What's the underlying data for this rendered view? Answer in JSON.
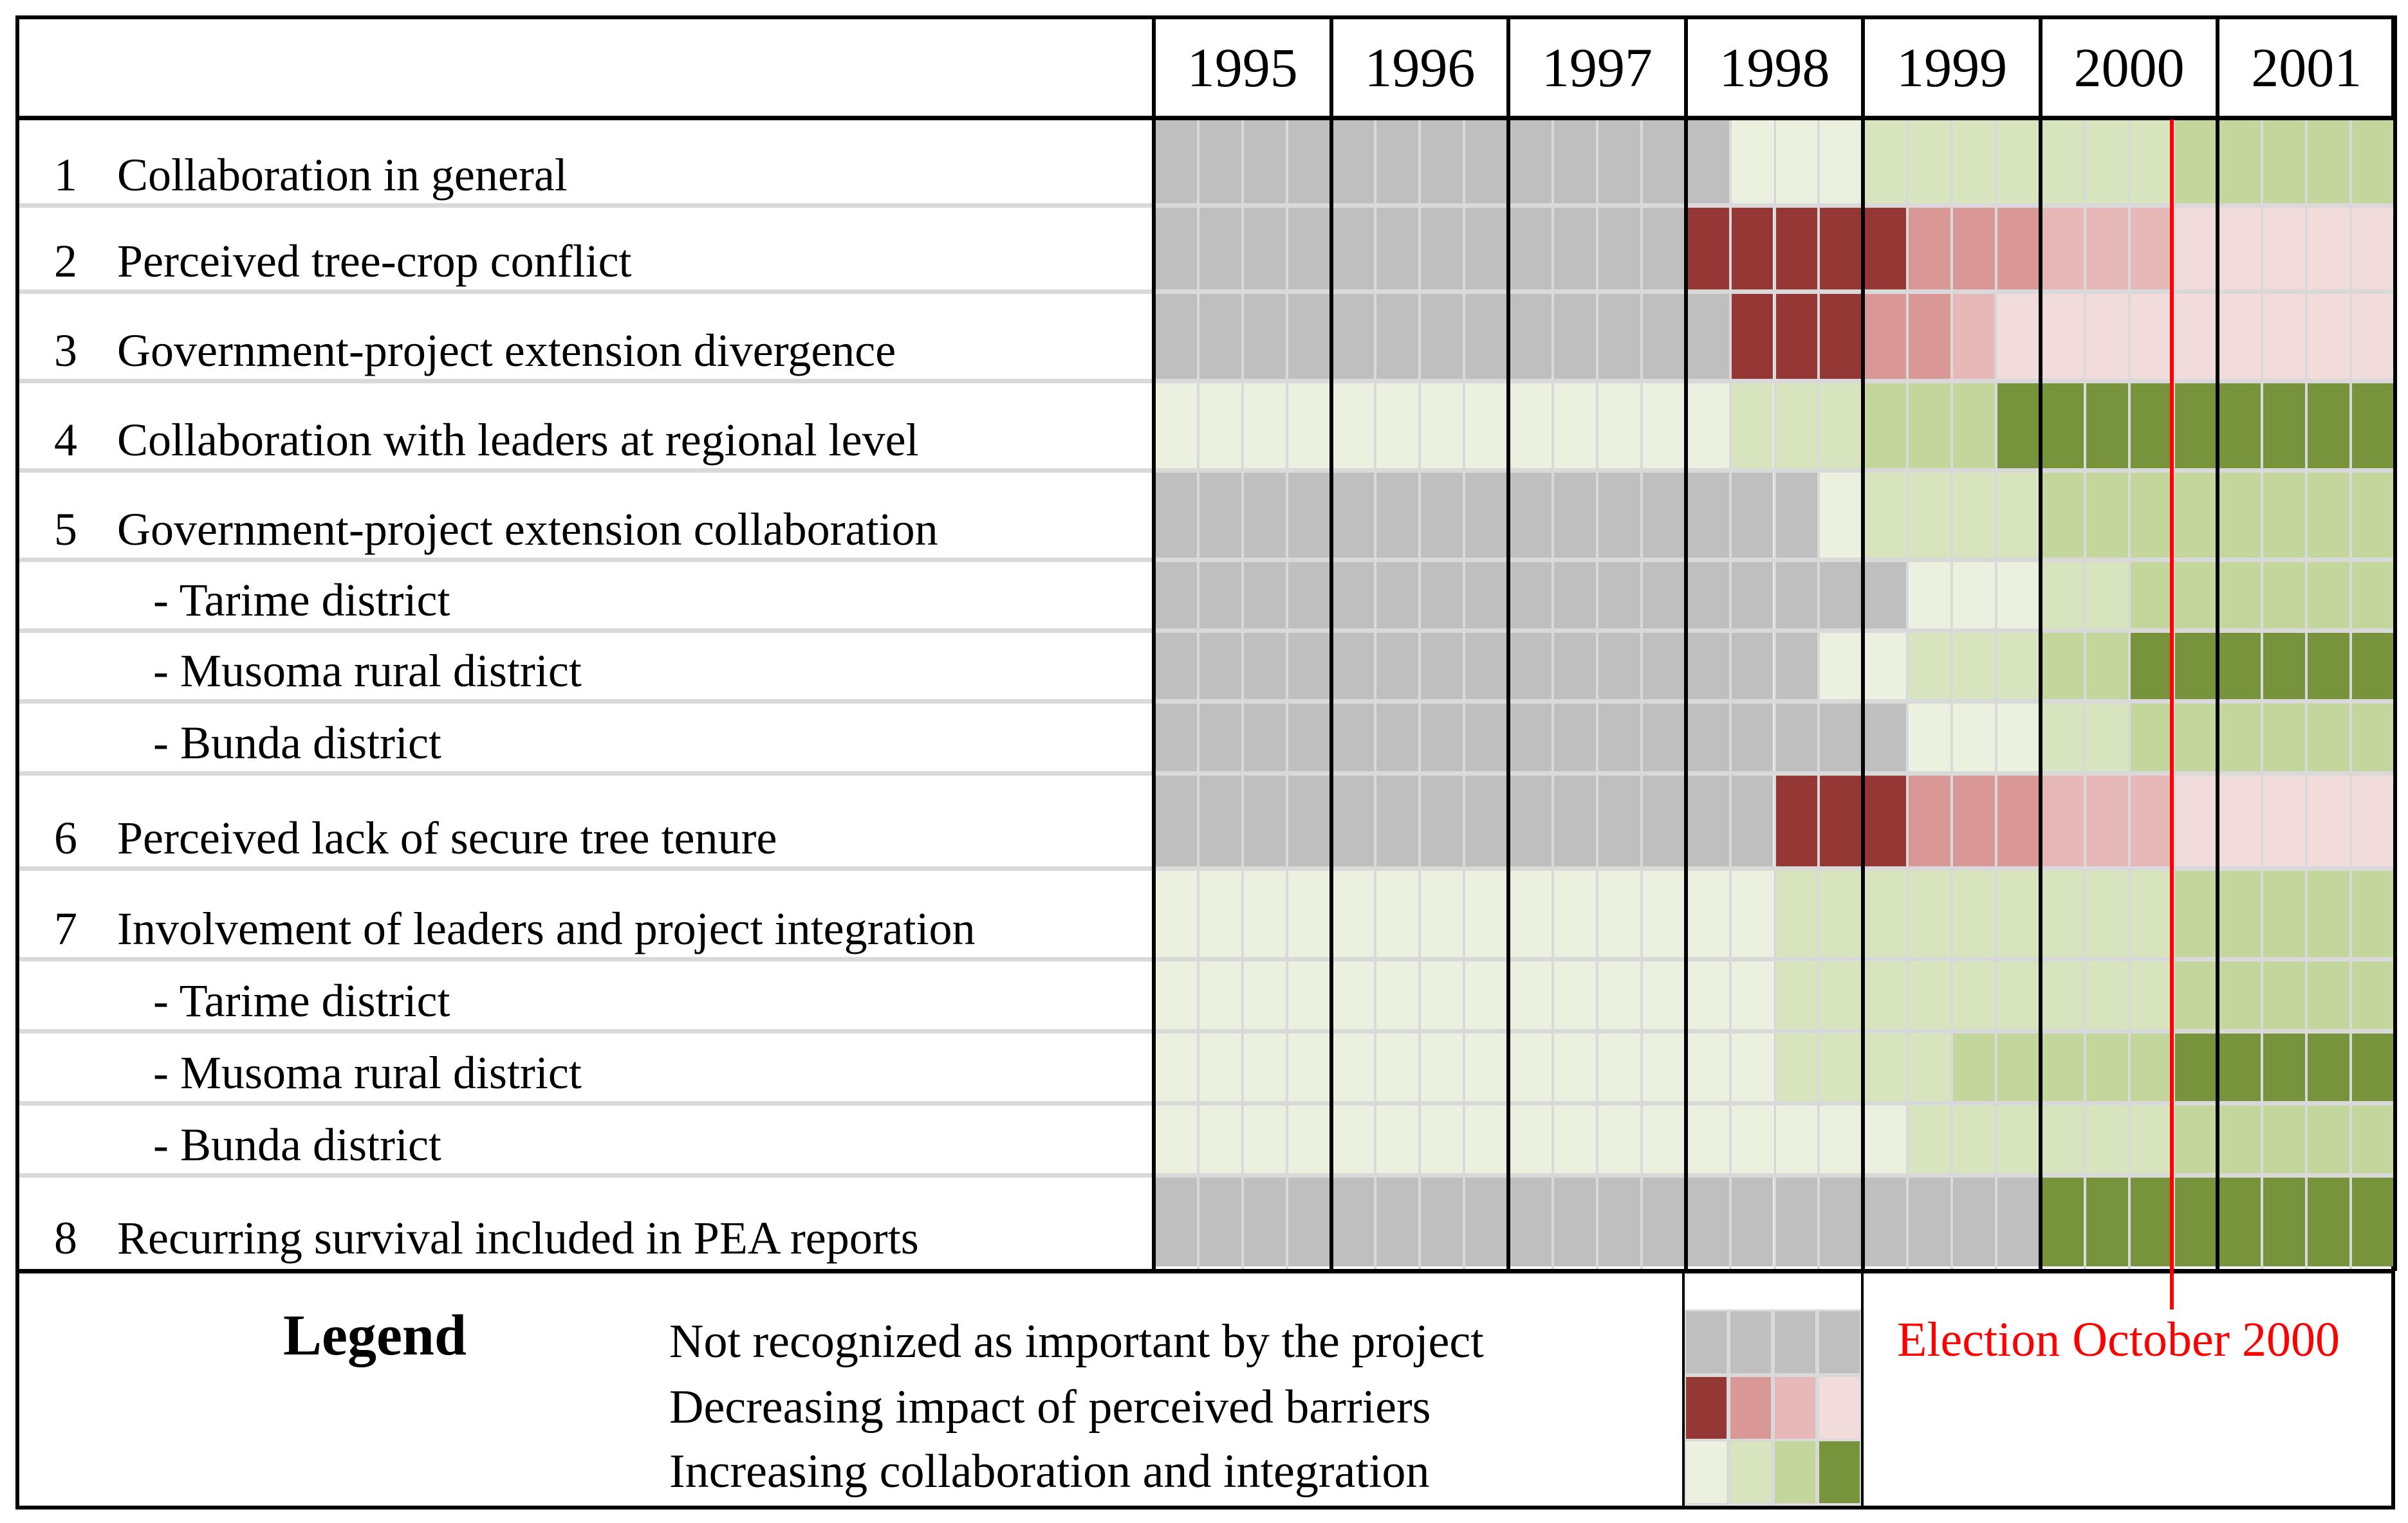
{
  "years": [
    "1995",
    "1996",
    "1997",
    "1998",
    "1999",
    "2000",
    "2001"
  ],
  "palette": {
    "G": "#BFBFBF",
    "D1": "#953735",
    "D2": "#D99795",
    "D3": "#E6B8B7",
    "D4": "#F2DCDB",
    "I1": "#EBF1DE",
    "I2": "#D7E4BD",
    "I3": "#C3D69B",
    "I4": "#77933C",
    "grid": "#D9D9D9",
    "election": "#FF0000"
  },
  "rows": [
    {
      "num": "1",
      "label": "Collaboration in general",
      "sub": false,
      "cells": [
        "G",
        "G",
        "G",
        "G",
        "G",
        "G",
        "G",
        "G",
        "G",
        "G",
        "G",
        "G",
        "G",
        "I1",
        "I1",
        "I1",
        "I2",
        "I2",
        "I2",
        "I2",
        "I2",
        "I2",
        "I2",
        "I3",
        "I3",
        "I3",
        "I3",
        "I3"
      ]
    },
    {
      "num": "2",
      "label": "Perceived tree-crop conflict",
      "sub": false,
      "cells": [
        "G",
        "G",
        "G",
        "G",
        "G",
        "G",
        "G",
        "G",
        "G",
        "G",
        "G",
        "G",
        "D1",
        "D1",
        "D1",
        "D1",
        "D1",
        "D2",
        "D2",
        "D2",
        "D3",
        "D3",
        "D3",
        "D4",
        "D4",
        "D4",
        "D4",
        "D4"
      ]
    },
    {
      "num": "3",
      "label": "Government-project extension divergence",
      "sub": false,
      "cells": [
        "G",
        "G",
        "G",
        "G",
        "G",
        "G",
        "G",
        "G",
        "G",
        "G",
        "G",
        "G",
        "G",
        "D1",
        "D1",
        "D1",
        "D2",
        "D2",
        "D3",
        "D4",
        "D4",
        "D4",
        "D4",
        "D4",
        "D4",
        "D4",
        "D4",
        "D4"
      ]
    },
    {
      "num": "4",
      "label": "Collaboration with leaders at regional level",
      "sub": false,
      "cells": [
        "I1",
        "I1",
        "I1",
        "I1",
        "I1",
        "I1",
        "I1",
        "I1",
        "I1",
        "I1",
        "I1",
        "I1",
        "I1",
        "I2",
        "I2",
        "I2",
        "I3",
        "I3",
        "I3",
        "I4",
        "I4",
        "I4",
        "I4",
        "I4",
        "I4",
        "I4",
        "I4",
        "I4"
      ]
    },
    {
      "num": "5",
      "label": "Government-project extension collaboration",
      "sub": false,
      "cells": [
        "G",
        "G",
        "G",
        "G",
        "G",
        "G",
        "G",
        "G",
        "G",
        "G",
        "G",
        "G",
        "G",
        "G",
        "G",
        "I1",
        "I2",
        "I2",
        "I2",
        "I2",
        "I3",
        "I3",
        "I3",
        "I3",
        "I3",
        "I3",
        "I3",
        "I3"
      ]
    },
    {
      "num": "",
      "label": "- Tarime district",
      "sub": true,
      "cells": [
        "G",
        "G",
        "G",
        "G",
        "G",
        "G",
        "G",
        "G",
        "G",
        "G",
        "G",
        "G",
        "G",
        "G",
        "G",
        "G",
        "G",
        "I1",
        "I1",
        "I1",
        "I2",
        "I2",
        "I3",
        "I3",
        "I3",
        "I3",
        "I3",
        "I3"
      ]
    },
    {
      "num": "",
      "label": "- Musoma rural district",
      "sub": true,
      "cells": [
        "G",
        "G",
        "G",
        "G",
        "G",
        "G",
        "G",
        "G",
        "G",
        "G",
        "G",
        "G",
        "G",
        "G",
        "G",
        "I1",
        "I1",
        "I2",
        "I2",
        "I2",
        "I3",
        "I3",
        "I4",
        "I4",
        "I4",
        "I4",
        "I4",
        "I4"
      ]
    },
    {
      "num": "",
      "label": "- Bunda district",
      "sub": true,
      "cells": [
        "G",
        "G",
        "G",
        "G",
        "G",
        "G",
        "G",
        "G",
        "G",
        "G",
        "G",
        "G",
        "G",
        "G",
        "G",
        "G",
        "G",
        "I1",
        "I1",
        "I1",
        "I2",
        "I2",
        "I3",
        "I3",
        "I3",
        "I3",
        "I3",
        "I3"
      ]
    },
    {
      "num": "6",
      "label": "Perceived  lack of secure tree tenure",
      "sub": false,
      "cells": [
        "G",
        "G",
        "G",
        "G",
        "G",
        "G",
        "G",
        "G",
        "G",
        "G",
        "G",
        "G",
        "G",
        "G",
        "D1",
        "D1",
        "D1",
        "D2",
        "D2",
        "D2",
        "D3",
        "D3",
        "D3",
        "D4",
        "D4",
        "D4",
        "D4",
        "D4"
      ]
    },
    {
      "num": "7",
      "label": "Involvement of leaders and project integration",
      "sub": false,
      "cells": [
        "I1",
        "I1",
        "I1",
        "I1",
        "I1",
        "I1",
        "I1",
        "I1",
        "I1",
        "I1",
        "I1",
        "I1",
        "I1",
        "I1",
        "I2",
        "I2",
        "I2",
        "I2",
        "I2",
        "I2",
        "I2",
        "I2",
        "I2",
        "I3",
        "I3",
        "I3",
        "I3",
        "I3"
      ]
    },
    {
      "num": "",
      "label": "- Tarime district",
      "sub": true,
      "cells": [
        "I1",
        "I1",
        "I1",
        "I1",
        "I1",
        "I1",
        "I1",
        "I1",
        "I1",
        "I1",
        "I1",
        "I1",
        "I1",
        "I1",
        "I2",
        "I2",
        "I2",
        "I2",
        "I2",
        "I2",
        "I2",
        "I2",
        "I2",
        "I3",
        "I3",
        "I3",
        "I3",
        "I3"
      ]
    },
    {
      "num": "",
      "label": "- Musoma rural district",
      "sub": true,
      "cells": [
        "I1",
        "I1",
        "I1",
        "I1",
        "I1",
        "I1",
        "I1",
        "I1",
        "I1",
        "I1",
        "I1",
        "I1",
        "I1",
        "I1",
        "I2",
        "I2",
        "I2",
        "I2",
        "I3",
        "I3",
        "I3",
        "I3",
        "I3",
        "I4",
        "I4",
        "I4",
        "I4",
        "I4"
      ]
    },
    {
      "num": "",
      "label": "- Bunda district",
      "sub": true,
      "cells": [
        "I1",
        "I1",
        "I1",
        "I1",
        "I1",
        "I1",
        "I1",
        "I1",
        "I1",
        "I1",
        "I1",
        "I1",
        "I1",
        "I1",
        "I1",
        "I1",
        "I1",
        "I2",
        "I2",
        "I2",
        "I2",
        "I2",
        "I2",
        "I3",
        "I3",
        "I3",
        "I3",
        "I3"
      ]
    },
    {
      "num": "8",
      "label": "Recurring survival included in PEA reports",
      "sub": false,
      "cells": [
        "G",
        "G",
        "G",
        "G",
        "G",
        "G",
        "G",
        "G",
        "G",
        "G",
        "G",
        "G",
        "G",
        "G",
        "G",
        "G",
        "G",
        "G",
        "G",
        "G",
        "I4",
        "I4",
        "I4",
        "I4",
        "I4",
        "I4",
        "I4",
        "I4"
      ]
    }
  ],
  "legend": {
    "title": "Legend",
    "items": [
      {
        "label": "Not recognized as important by the project",
        "swatches": [
          "G",
          "G",
          "G",
          "G"
        ]
      },
      {
        "label": "Decreasing impact of perceived barriers",
        "swatches": [
          "D1",
          "D2",
          "D3",
          "D4"
        ]
      },
      {
        "label": "Increasing collaboration and  integration",
        "swatches": [
          "I1",
          "I2",
          "I3",
          "I4"
        ]
      }
    ],
    "election": "Election October 2000"
  }
}
